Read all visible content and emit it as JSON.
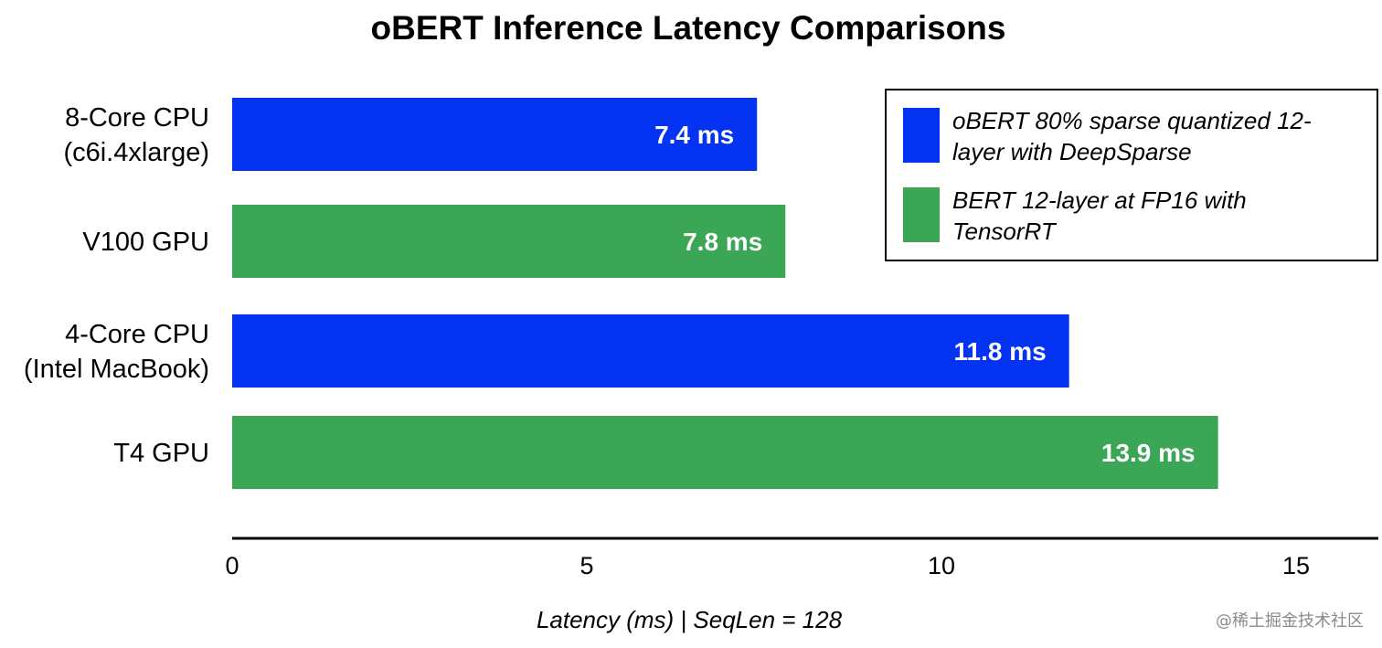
{
  "chart_data": {
    "type": "bar",
    "orientation": "horizontal",
    "title": "oBERT Inference Latency Comparisons",
    "xlabel": "Latency (ms) | SeqLen = 128",
    "ylabel": "",
    "xlim": [
      0,
      16
    ],
    "xticks": [
      0,
      5,
      10,
      15
    ],
    "grid": false,
    "legend_position": "top-right",
    "categories": [
      [
        "8-Core CPU",
        "(c6i.4xlarge)"
      ],
      [
        "V100 GPU"
      ],
      [
        "4-Core CPU",
        "(Intel MacBook)"
      ],
      [
        "T4 GPU"
      ]
    ],
    "bars": [
      {
        "value": 7.4,
        "label": "7.4 ms",
        "series": 0
      },
      {
        "value": 7.8,
        "label": "7.8 ms",
        "series": 1
      },
      {
        "value": 11.8,
        "label": "11.8 ms",
        "series": 0
      },
      {
        "value": 13.9,
        "label": "13.9 ms",
        "series": 1
      }
    ],
    "series": [
      {
        "name": [
          "oBERT 80% sparse quantized 12-",
          "layer with DeepSparse"
        ],
        "color": "#0433f1"
      },
      {
        "name": [
          "BERT 12-layer at FP16 with",
          "TensorRT"
        ],
        "color": "#3ba655"
      }
    ]
  },
  "watermark": "@稀土掘金技术社区"
}
